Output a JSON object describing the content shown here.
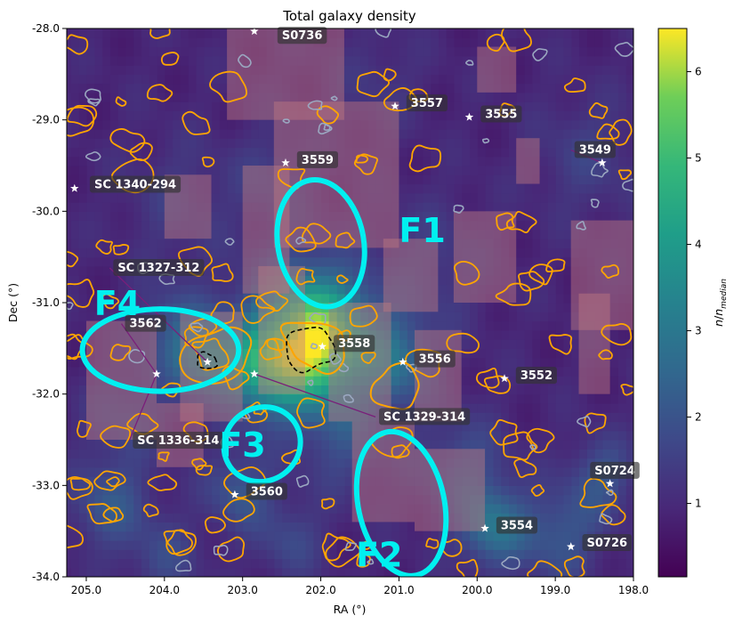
{
  "chart_data": {
    "type": "heatmap",
    "title": "Total galaxy density",
    "xlabel": "RA (°)",
    "ylabel": "Dec (°)",
    "colorbar_label": "n/n_median",
    "colorbar_label_html": "<tspan font-style='italic'>n</tspan>/<tspan font-style='italic'>n</tspan><tspan font-size='9' dy='4' font-style='italic'>median</tspan>",
    "colormap": "viridis",
    "xlim": [
      205.25,
      198.0
    ],
    "ylim": [
      -34.0,
      -28.0
    ],
    "colorbar_range": [
      0.15,
      6.5
    ],
    "x_ticks": [
      {
        "v": 205.0,
        "label": "205.0"
      },
      {
        "v": 204.0,
        "label": "204.0"
      },
      {
        "v": 203.0,
        "label": "203.0"
      },
      {
        "v": 202.0,
        "label": "202.0"
      },
      {
        "v": 201.0,
        "label": "201.0"
      },
      {
        "v": 200.0,
        "label": "200.0"
      },
      {
        "v": 199.0,
        "label": "199.0"
      },
      {
        "v": 198.0,
        "label": "198.0"
      }
    ],
    "y_ticks": [
      {
        "v": -28.0,
        "label": "-28.0"
      },
      {
        "v": -29.0,
        "label": "-29.0"
      },
      {
        "v": -30.0,
        "label": "-30.0"
      },
      {
        "v": -31.0,
        "label": "-31.0"
      },
      {
        "v": -32.0,
        "label": "-32.0"
      },
      {
        "v": -33.0,
        "label": "-33.0"
      },
      {
        "v": -34.0,
        "label": "-34.0"
      }
    ],
    "colorbar_ticks": [
      {
        "v": 1,
        "label": "1"
      },
      {
        "v": 2,
        "label": "2"
      },
      {
        "v": 3,
        "label": "3"
      },
      {
        "v": 4,
        "label": "4"
      },
      {
        "v": 5,
        "label": "5"
      },
      {
        "v": 6,
        "label": "6"
      }
    ],
    "density_peaks": [
      {
        "ra": 202.0,
        "dec": -31.45,
        "amp": 4.0,
        "sigma": 0.45
      },
      {
        "ra": 202.7,
        "dec": -31.75,
        "amp": 2.6,
        "sigma": 0.35
      },
      {
        "ra": 203.45,
        "dec": -31.6,
        "amp": 2.3,
        "sigma": 0.3
      },
      {
        "ra": 201.05,
        "dec": -31.65,
        "amp": 1.6,
        "sigma": 0.35
      },
      {
        "ra": 202.3,
        "dec": -31.2,
        "amp": 1.8,
        "sigma": 0.5
      },
      {
        "ra": 199.8,
        "dec": -33.45,
        "amp": 1.9,
        "sigma": 0.3
      },
      {
        "ra": 198.95,
        "dec": -33.55,
        "amp": 1.2,
        "sigma": 0.35
      },
      {
        "ra": 203.05,
        "dec": -33.05,
        "amp": 1.2,
        "sigma": 0.3
      },
      {
        "ra": 204.7,
        "dec": -33.2,
        "amp": 1.2,
        "sigma": 0.35
      },
      {
        "ra": 200.2,
        "dec": -32.8,
        "amp": 1.0,
        "sigma": 0.4
      },
      {
        "ra": 198.4,
        "dec": -32.9,
        "amp": 1.1,
        "sigma": 0.3
      },
      {
        "ra": 201.7,
        "dec": -32.5,
        "amp": 0.9,
        "sigma": 0.4
      },
      {
        "ra": 204.5,
        "dec": -32.2,
        "amp": 0.8,
        "sigma": 0.35
      },
      {
        "ra": 203.9,
        "dec": -31.3,
        "amp": 1.0,
        "sigma": 0.35
      },
      {
        "ra": 200.6,
        "dec": -30.6,
        "amp": 0.6,
        "sigma": 0.5
      },
      {
        "ra": 203.8,
        "dec": -29.9,
        "amp": 0.5,
        "sigma": 0.5
      },
      {
        "ra": 198.6,
        "dec": -29.4,
        "amp": 0.6,
        "sigma": 0.45
      },
      {
        "ra": 201.3,
        "dec": -28.6,
        "amp": 0.4,
        "sigma": 0.4
      },
      {
        "ra": 202.6,
        "dec": -29.6,
        "amp": 0.6,
        "sigma": 0.35
      },
      {
        "ra": 204.0,
        "dec": -33.8,
        "amp": 0.8,
        "sigma": 0.3
      },
      {
        "ra": 202.4,
        "dec": -33.6,
        "amp": 0.8,
        "sigma": 0.3
      }
    ],
    "clusters": [
      {
        "name": "S0736",
        "ra": 202.85,
        "dec": -28.03,
        "lra": 202.6,
        "ldec": -28.08
      },
      {
        "name": "3557",
        "ra": 201.05,
        "dec": -28.85,
        "lra": 200.95,
        "ldec": -28.82
      },
      {
        "name": "3555",
        "ra": 200.1,
        "dec": -28.97,
        "lra": 200.0,
        "ldec": -28.94
      },
      {
        "name": "3549",
        "ra": 198.4,
        "dec": -29.47,
        "lra": 198.8,
        "ldec": -29.33
      },
      {
        "name": "3559",
        "ra": 202.45,
        "dec": -29.47,
        "lra": 202.35,
        "ldec": -29.44
      },
      {
        "name": "SC 1340-294",
        "ra": 205.15,
        "dec": -29.75,
        "lra": 205.0,
        "ldec": -29.71
      },
      {
        "name": "3558",
        "ra": 201.98,
        "dec": -31.48,
        "lra": 201.88,
        "ldec": -31.45
      },
      {
        "name": "3556",
        "ra": 200.95,
        "dec": -31.65,
        "lra": 200.85,
        "ldec": -31.62
      },
      {
        "name": "3552",
        "ra": 199.65,
        "dec": -31.83,
        "lra": 199.55,
        "ldec": -31.8
      },
      {
        "name": "3562",
        "ra": 204.1,
        "dec": -31.78,
        "lra": 204.55,
        "ldec": -31.23
      },
      {
        "name": "3560",
        "ra": 203.1,
        "dec": -33.1,
        "lra": 203.0,
        "ldec": -33.07
      },
      {
        "name": "3554",
        "ra": 199.9,
        "dec": -33.47,
        "lra": 199.8,
        "ldec": -33.44
      },
      {
        "name": "S0724",
        "ra": 198.3,
        "dec": -32.98,
        "lra": 198.6,
        "ldec": -32.84
      },
      {
        "name": "S0726",
        "ra": 198.8,
        "dec": -33.67,
        "lra": 198.7,
        "ldec": -33.63
      },
      {
        "name": "SC 1327-312",
        "ra": 203.45,
        "dec": -31.65,
        "lra": 204.7,
        "ldec": -30.62
      },
      {
        "name": "SC 1329-314",
        "ra": 202.85,
        "dec": -31.78,
        "lra": 201.3,
        "ldec": -32.25
      },
      {
        "name": "SC 1336-314",
        "ra": 204.1,
        "dec": -31.78,
        "lra": 204.45,
        "ldec": -32.51
      }
    ],
    "fields": [
      {
        "name": "F1",
        "ra": 202.0,
        "dec": -30.35,
        "rx": 0.55,
        "ry": 0.7,
        "angle": -10,
        "lra": 201.0,
        "ldec": -30.2
      },
      {
        "name": "F2",
        "ra": 200.97,
        "dec": -33.2,
        "rx": 0.55,
        "ry": 0.8,
        "angle": -12,
        "lra": 201.55,
        "ldec": -33.75
      },
      {
        "name": "F3",
        "ra": 202.75,
        "dec": -32.55,
        "rx": 0.5,
        "ry": 0.4,
        "angle": -35,
        "lra": 203.3,
        "ldec": -32.55
      },
      {
        "name": "F4",
        "ra": 204.05,
        "dec": -31.52,
        "rx": 1.0,
        "ry": 0.45,
        "angle": 0,
        "lra": 204.9,
        "ldec": -31.0
      }
    ]
  }
}
